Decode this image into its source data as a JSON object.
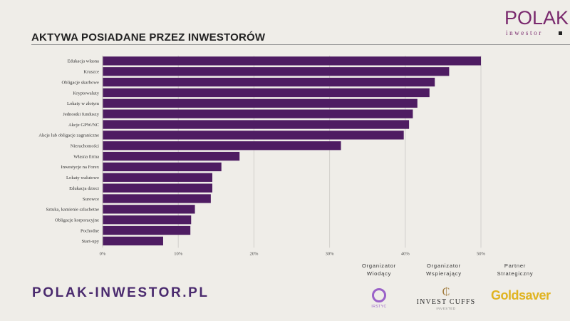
{
  "header": {
    "title": "AKTYWA POSIADANE PRZEZ INWESTORÓW",
    "logo_main": "POLAK",
    "logo_sub": "inwestor"
  },
  "chart_data": {
    "type": "bar",
    "orientation": "horizontal",
    "title": "AKTYWA POSIADANE PRZEZ INWESTORÓW",
    "xlabel": "",
    "ylabel": "",
    "xlim": [
      0,
      50
    ],
    "tick_values": [
      0,
      10,
      20,
      30,
      40,
      50
    ],
    "tick_labels": [
      "0%",
      "10%",
      "20%",
      "30%",
      "40%",
      "50%"
    ],
    "grid": true,
    "bar_color": "#4e1c62",
    "categories": [
      "Edukacja własna",
      "Kruszce",
      "Obligacje skarbowe",
      "Kryptowaluty",
      "Lokaty w złotym",
      "Jednostki funduszy",
      "Akcje GPW/NC",
      "Akcje lub obligacje zagraniczne",
      "Nieruchomości",
      "Własna firma",
      "Inwestycje na Forex",
      "Lokaty walutowe",
      "Edukacja dzieci",
      "Surowce",
      "Sztuka, kamienie szlachetne",
      "Obligacje korporacyjne",
      "Pochodne",
      "Start-upy"
    ],
    "values": [
      50.0,
      45.8,
      43.9,
      43.2,
      41.6,
      41.0,
      40.5,
      39.8,
      31.5,
      18.1,
      15.7,
      14.5,
      14.5,
      14.3,
      12.2,
      11.7,
      11.6,
      8.0
    ]
  },
  "footer": {
    "site_url": "POLAK-INWESTOR.PL",
    "sponsors": [
      {
        "heading": "Organizator\nWiodący",
        "logo_text": "IRSTYC"
      },
      {
        "heading": "Organizator\nWspierający",
        "logo_text": "INVEST CUFFS",
        "logo_sub": "INVESTED"
      },
      {
        "heading": "Partner\nStrategiczny",
        "logo_text": "Goldsaver"
      }
    ]
  }
}
